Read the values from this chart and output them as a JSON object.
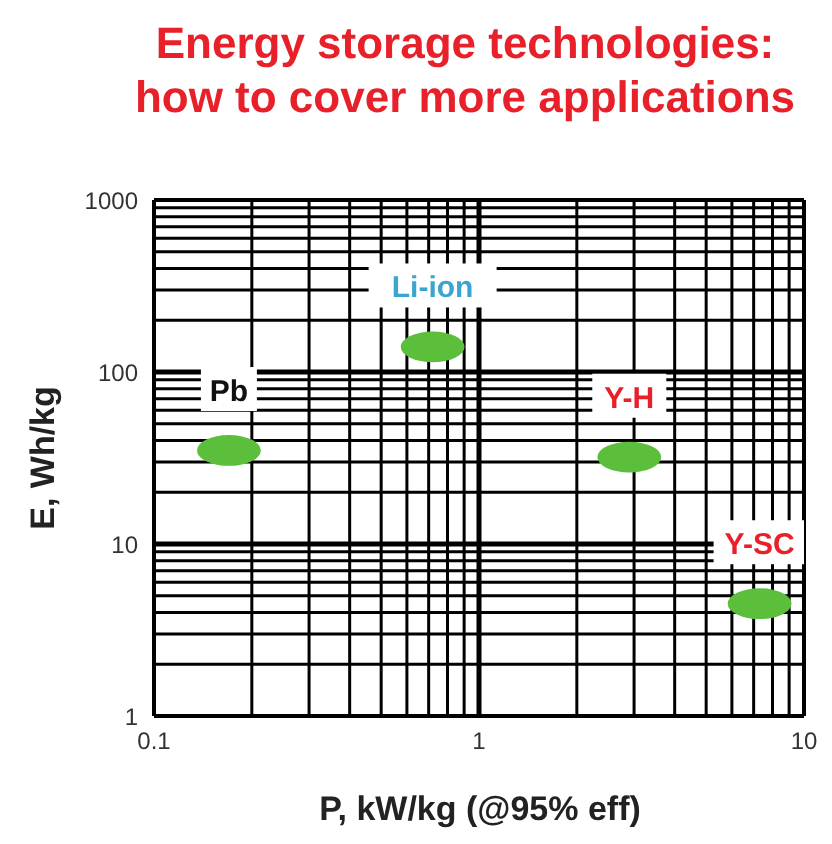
{
  "chart_data": {
    "type": "scatter",
    "marker": "circle",
    "title": "Energy storage technologies: how to cover more applications",
    "xlabel": "P, kW/kg (@95% eff)",
    "ylabel": "E, Wh/kg",
    "log": "xy",
    "grid": true,
    "xlim": [
      0.1,
      10
    ],
    "ylim": [
      1,
      1000
    ],
    "xticks": [
      0.1,
      1,
      10
    ],
    "yticks": [
      1,
      10,
      100,
      1000
    ],
    "series": [
      {
        "name": "Pb",
        "color": "#5cbf3c",
        "x": [
          0.17
        ],
        "values": [
          35
        ]
      },
      {
        "name": "Li-ion",
        "color": "#5cbf3c",
        "x": [
          0.72
        ],
        "values": [
          140
        ]
      },
      {
        "name": "Y-H",
        "color": "#5cbf3c",
        "x": [
          2.9
        ],
        "values": [
          32
        ]
      },
      {
        "name": "Y-SC",
        "color": "#5cbf3c",
        "x": [
          7.3
        ],
        "values": [
          4.5
        ]
      }
    ]
  }
}
